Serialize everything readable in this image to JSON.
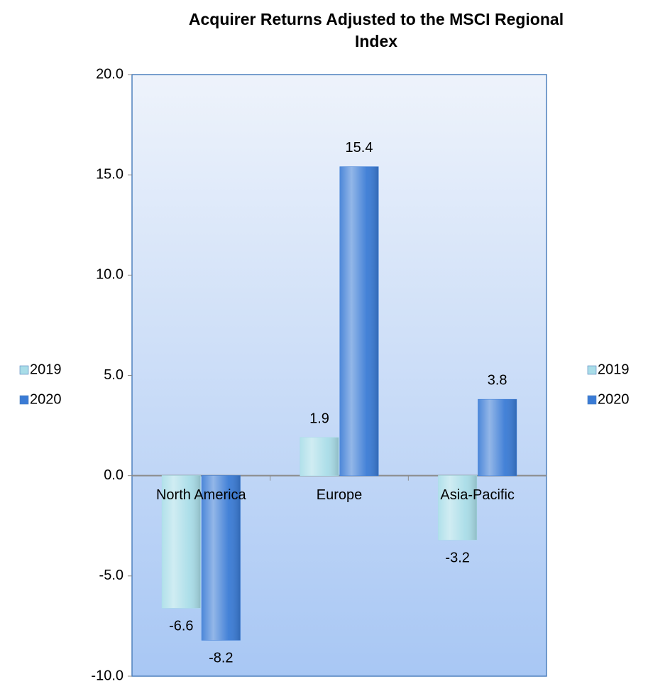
{
  "chart_data": {
    "type": "bar",
    "title": "Acquirer Returns Adjusted to the MSCI Regional Index",
    "categories": [
      "North America",
      "Europe",
      "Asia-Pacific"
    ],
    "series": [
      {
        "name": "2019",
        "color": "#a9dde8",
        "values": [
          -6.6,
          1.9,
          -3.2
        ]
      },
      {
        "name": "2020",
        "color": "#3a7bd5",
        "values": [
          -8.2,
          15.4,
          3.8
        ]
      }
    ],
    "ylim": [
      -10,
      20
    ],
    "yticks": [
      {
        "value": -10,
        "label": "-10.0"
      },
      {
        "value": -5,
        "label": "-5.0"
      },
      {
        "value": 0,
        "label": "0.0"
      },
      {
        "value": 5,
        "label": "5.0"
      },
      {
        "value": 10,
        "label": "10.0"
      },
      {
        "value": 15,
        "label": "15.0"
      },
      {
        "value": 20,
        "label": "20.0"
      }
    ]
  }
}
